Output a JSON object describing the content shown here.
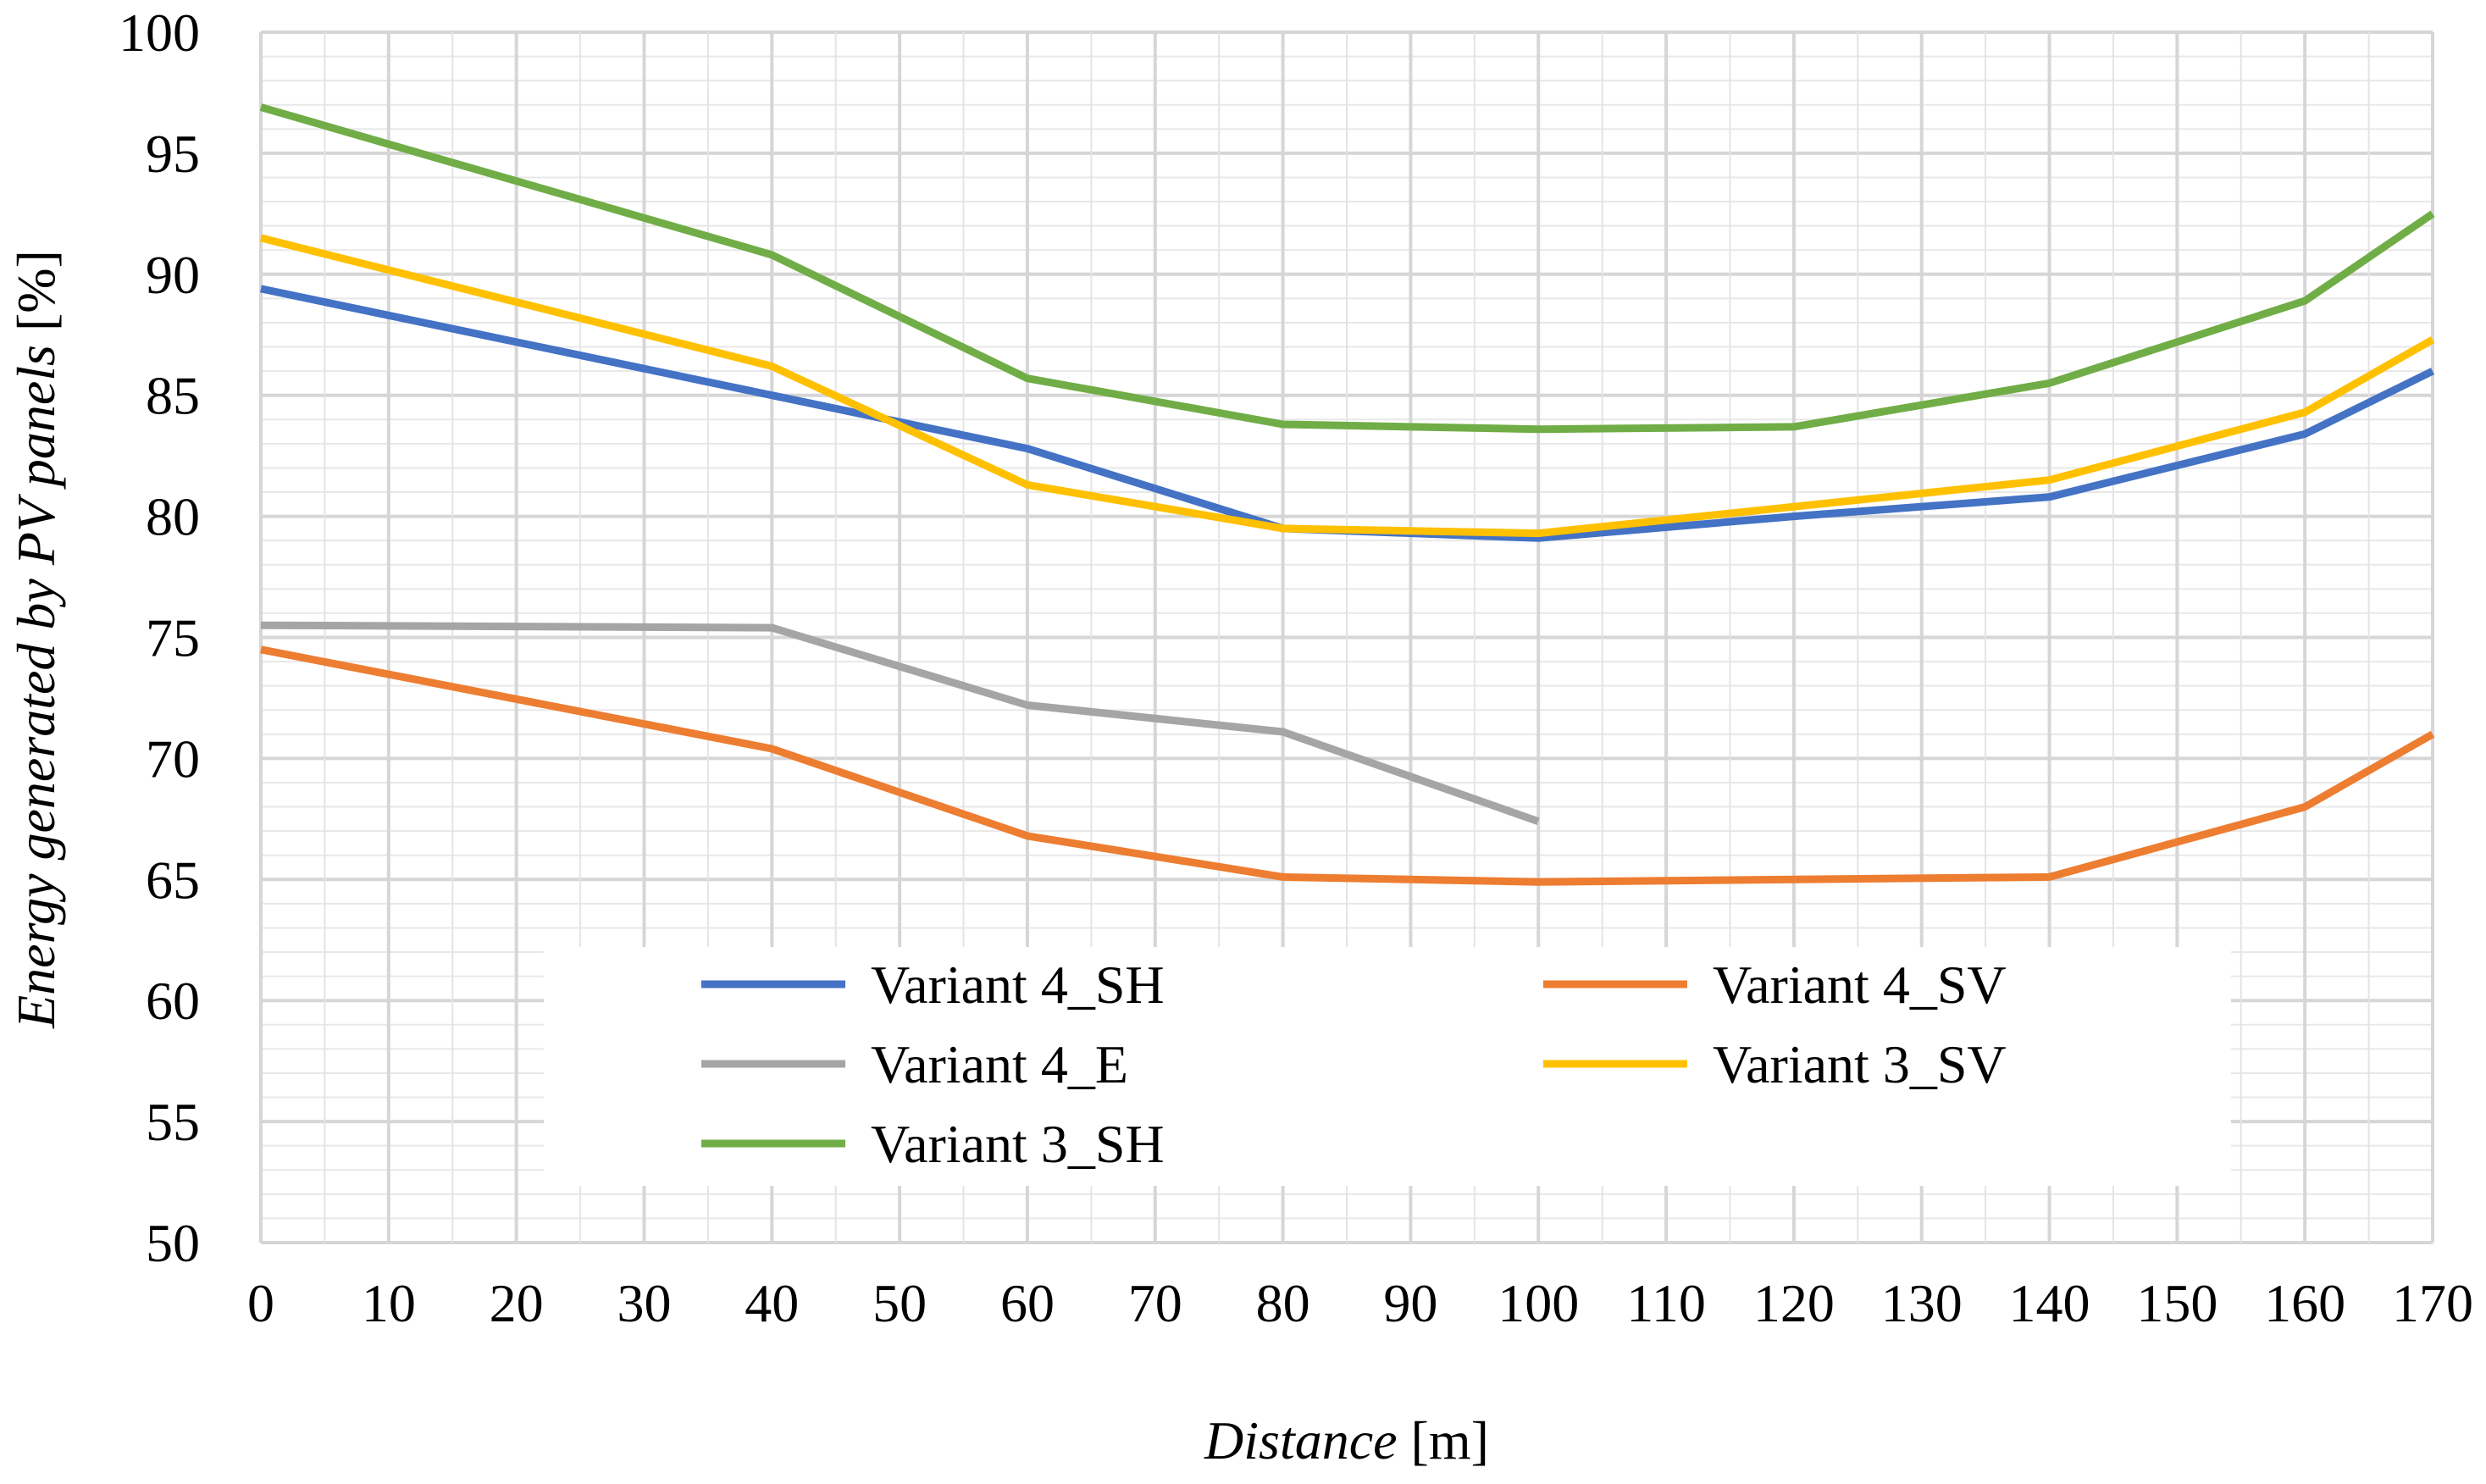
{
  "chart_data": {
    "type": "line",
    "title": "",
    "xlabel": {
      "italic": "Distance",
      "normal": " [m]"
    },
    "ylabel": {
      "italic": "Energy generated by PV panels",
      "normal": " [%]"
    },
    "xlim": [
      0,
      170
    ],
    "ylim": [
      50,
      100
    ],
    "x_ticks": [
      0,
      10,
      20,
      30,
      40,
      50,
      60,
      70,
      80,
      90,
      100,
      110,
      120,
      130,
      140,
      150,
      160,
      170
    ],
    "y_ticks": [
      50,
      55,
      60,
      65,
      70,
      75,
      80,
      85,
      90,
      95,
      100
    ],
    "grid": true,
    "legend_position": "bottom-center",
    "series": [
      {
        "name": "Variant 4_SH",
        "color": "#4472C4",
        "x": [
          0,
          40,
          60,
          80,
          100,
          120,
          140,
          160,
          170
        ],
        "values": [
          89.4,
          85.0,
          82.8,
          79.5,
          79.1,
          80.0,
          80.8,
          83.4,
          86.0
        ]
      },
      {
        "name": "Variant 4_SV",
        "color": "#ED7D31",
        "x": [
          0,
          40,
          60,
          80,
          100,
          120,
          140,
          160,
          170
        ],
        "values": [
          74.5,
          70.4,
          66.8,
          65.1,
          64.9,
          65.0,
          65.1,
          68.0,
          71.0
        ]
      },
      {
        "name": "Variant 4_E",
        "color": "#A5A5A5",
        "x": [
          0,
          40,
          60,
          80,
          100
        ],
        "values": [
          75.5,
          75.4,
          72.2,
          71.1,
          67.4
        ]
      },
      {
        "name": "Variant 3_SV",
        "color": "#FFC000",
        "x": [
          0,
          40,
          60,
          80,
          100,
          120,
          140,
          160,
          170
        ],
        "values": [
          91.5,
          86.2,
          81.3,
          79.5,
          79.3,
          80.4,
          81.5,
          84.3,
          87.3
        ]
      },
      {
        "name": "Variant 3_SH",
        "color": "#70AD47",
        "x": [
          0,
          40,
          60,
          80,
          100,
          120,
          140,
          160,
          170
        ],
        "values": [
          96.9,
          90.8,
          85.7,
          83.8,
          83.6,
          83.7,
          85.5,
          88.9,
          92.5
        ]
      }
    ]
  }
}
